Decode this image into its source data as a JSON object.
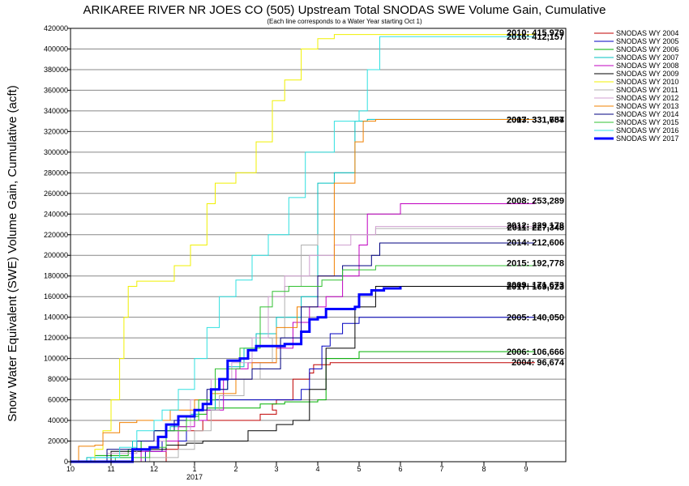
{
  "chart_data": {
    "type": "line",
    "title": "ARIKAREE RIVER NR JOES CO (505) Upstream Total SNODAS SWE Volume Gain, Cumulative",
    "subtitle": "(Each line corresponds to a Water Year starting Oct 1)",
    "ylabel": "Snow Water Equivalent (SWE) Volume Gain, Cumulative (acft)",
    "xlabel": "",
    "x_year_label": "2017",
    "x_tick_labels": [
      "10",
      "11",
      "12",
      "1",
      "2",
      "3",
      "4",
      "5",
      "6",
      "7",
      "8",
      "9"
    ],
    "ylim": [
      0,
      420000
    ],
    "y_ticks": [
      0,
      20000,
      40000,
      60000,
      80000,
      100000,
      120000,
      140000,
      160000,
      180000,
      200000,
      220000,
      240000,
      260000,
      280000,
      300000,
      320000,
      340000,
      360000,
      380000,
      400000,
      420000
    ],
    "grid": "horizontal",
    "legend_position": "right",
    "series": [
      {
        "name": "SNODAS WY 2004",
        "color": "#c00000",
        "end_label": "2004: 96,674",
        "points": [
          [
            0,
            0
          ],
          [
            2.3,
            0
          ],
          [
            2.3,
            12000
          ],
          [
            2.6,
            12000
          ],
          [
            2.6,
            30000
          ],
          [
            3.2,
            30000
          ],
          [
            3.2,
            40000
          ],
          [
            4.6,
            46000
          ],
          [
            5.0,
            50000
          ],
          [
            4.9,
            56000
          ],
          [
            5.0,
            60000
          ],
          [
            5.4,
            80000
          ],
          [
            5.8,
            86000
          ],
          [
            5.9,
            94000
          ],
          [
            6.3,
            96000
          ],
          [
            11.2,
            96674
          ]
        ]
      },
      {
        "name": "SNODAS WY 2005",
        "color": "#0000c0",
        "end_label": "2005: 140,050",
        "points": [
          [
            0,
            0
          ],
          [
            1.8,
            0
          ],
          [
            1.8,
            10000
          ],
          [
            2.2,
            20000
          ],
          [
            2.8,
            44000
          ],
          [
            3.0,
            60000
          ],
          [
            5.6,
            70000
          ],
          [
            5.8,
            90000
          ],
          [
            6.1,
            112000
          ],
          [
            6.3,
            124000
          ],
          [
            6.6,
            134000
          ],
          [
            7.0,
            140000
          ],
          [
            11.2,
            140050
          ]
        ]
      },
      {
        "name": "SNODAS WY 2006",
        "color": "#00b000",
        "end_label": "2006: 106,666",
        "points": [
          [
            0,
            0
          ],
          [
            0.6,
            0
          ],
          [
            0.6,
            6000
          ],
          [
            1.4,
            12000
          ],
          [
            1.7,
            20000
          ],
          [
            2.0,
            30000
          ],
          [
            2.6,
            34000
          ],
          [
            2.8,
            44000
          ],
          [
            3.1,
            46000
          ],
          [
            3.3,
            52000
          ],
          [
            4.1,
            52000
          ],
          [
            4.6,
            56000
          ],
          [
            5.2,
            58000
          ],
          [
            6.0,
            60000
          ],
          [
            6.2,
            100000
          ],
          [
            7.0,
            106666
          ],
          [
            11.2,
            106666
          ]
        ]
      },
      {
        "name": "SNODAS WY 2007",
        "color": "#00c0c0",
        "end_label": "2007: 331,754",
        "points": [
          [
            0,
            0
          ],
          [
            0.4,
            0
          ],
          [
            0.4,
            4000
          ],
          [
            1.5,
            20000
          ],
          [
            2.0,
            30000
          ],
          [
            2.4,
            34000
          ],
          [
            2.6,
            40000
          ],
          [
            2.9,
            46000
          ],
          [
            3.1,
            50000
          ],
          [
            3.5,
            70000
          ],
          [
            3.8,
            92000
          ],
          [
            4.2,
            110000
          ],
          [
            4.5,
            124000
          ],
          [
            5.0,
            140000
          ],
          [
            5.6,
            160000
          ],
          [
            6.0,
            270000
          ],
          [
            6.4,
            280000
          ],
          [
            6.9,
            330000
          ],
          [
            7.2,
            331754
          ],
          [
            11.2,
            331754
          ]
        ]
      },
      {
        "name": "SNODAS WY 2008",
        "color": "#c000c0",
        "end_label": "2008: 253,289",
        "points": [
          [
            0,
            0
          ],
          [
            1.7,
            0
          ],
          [
            1.7,
            10000
          ],
          [
            2.3,
            20000
          ],
          [
            2.6,
            34000
          ],
          [
            3.0,
            40000
          ],
          [
            3.3,
            50000
          ],
          [
            3.7,
            80000
          ],
          [
            4.0,
            90000
          ],
          [
            4.3,
            96000
          ],
          [
            5.0,
            110000
          ],
          [
            5.4,
            135000
          ],
          [
            5.8,
            150000
          ],
          [
            6.2,
            160000
          ],
          [
            6.6,
            180000
          ],
          [
            7.0,
            210000
          ],
          [
            7.2,
            240000
          ],
          [
            8.0,
            250000
          ],
          [
            11.2,
            253289
          ]
        ]
      },
      {
        "name": "SNODAS WY 2009",
        "color": "#000000",
        "end_label": "2009: 171,673",
        "points": [
          [
            0,
            0
          ],
          [
            1.0,
            0
          ],
          [
            1.0,
            10000
          ],
          [
            1.7,
            12000
          ],
          [
            2.3,
            16000
          ],
          [
            2.8,
            18000
          ],
          [
            3.2,
            20000
          ],
          [
            4.3,
            30000
          ],
          [
            5.0,
            36000
          ],
          [
            5.4,
            40000
          ],
          [
            5.8,
            70000
          ],
          [
            6.2,
            110000
          ],
          [
            6.9,
            150000
          ],
          [
            7.4,
            170000
          ],
          [
            11.2,
            171673
          ]
        ]
      },
      {
        "name": "SNODAS WY 2010",
        "color": "#f0f000",
        "end_label": "2010: 415,979",
        "points": [
          [
            0,
            0
          ],
          [
            0.6,
            0
          ],
          [
            0.6,
            12000
          ],
          [
            0.8,
            30000
          ],
          [
            1.0,
            60000
          ],
          [
            1.2,
            100000
          ],
          [
            1.3,
            140000
          ],
          [
            1.4,
            170000
          ],
          [
            1.6,
            175000
          ],
          [
            2.5,
            190000
          ],
          [
            2.9,
            210000
          ],
          [
            3.3,
            250000
          ],
          [
            3.5,
            270000
          ],
          [
            4.0,
            280000
          ],
          [
            4.5,
            310000
          ],
          [
            4.9,
            350000
          ],
          [
            5.2,
            370000
          ],
          [
            5.6,
            400000
          ],
          [
            6.0,
            410000
          ],
          [
            6.4,
            414000
          ],
          [
            11.2,
            415979
          ]
        ]
      },
      {
        "name": "SNODAS WY 2011",
        "color": "#b0b0b0",
        "end_label": "2011: 227,348",
        "points": [
          [
            0,
            0
          ],
          [
            1.9,
            0
          ],
          [
            1.9,
            4000
          ],
          [
            2.6,
            12000
          ],
          [
            3.0,
            30000
          ],
          [
            3.4,
            50000
          ],
          [
            3.6,
            64000
          ],
          [
            4.2,
            80000
          ],
          [
            4.6,
            96000
          ],
          [
            4.9,
            120000
          ],
          [
            5.2,
            170000
          ],
          [
            5.6,
            210000
          ],
          [
            6.0,
            220000
          ],
          [
            7.4,
            226000
          ],
          [
            11.2,
            227348
          ]
        ]
      },
      {
        "name": "SNODAS WY 2012",
        "color": "#d0a0d0",
        "end_label": "2012: 229,178",
        "points": [
          [
            0,
            0
          ],
          [
            0.9,
            0
          ],
          [
            0.9,
            8000
          ],
          [
            1.6,
            20000
          ],
          [
            2.3,
            30000
          ],
          [
            2.9,
            60000
          ],
          [
            3.4,
            80000
          ],
          [
            3.9,
            96000
          ],
          [
            4.4,
            120000
          ],
          [
            4.8,
            160000
          ],
          [
            5.2,
            180000
          ],
          [
            5.8,
            200000
          ],
          [
            6.4,
            210000
          ],
          [
            6.8,
            220000
          ],
          [
            7.4,
            228000
          ],
          [
            11.2,
            229178
          ]
        ]
      },
      {
        "name": "SNODAS WY 2013",
        "color": "#f08000",
        "end_label": "2013: 331,687",
        "points": [
          [
            0,
            0
          ],
          [
            0.2,
            0
          ],
          [
            0.2,
            15000
          ],
          [
            0.6,
            16000
          ],
          [
            0.8,
            28000
          ],
          [
            1.2,
            38000
          ],
          [
            1.6,
            40000
          ],
          [
            2.4,
            50000
          ],
          [
            3.0,
            60000
          ],
          [
            3.4,
            66000
          ],
          [
            4.0,
            80000
          ],
          [
            4.4,
            96000
          ],
          [
            5.0,
            130000
          ],
          [
            5.5,
            150000
          ],
          [
            6.0,
            180000
          ],
          [
            6.4,
            270000
          ],
          [
            6.9,
            310000
          ],
          [
            7.1,
            330000
          ],
          [
            7.4,
            331687
          ],
          [
            11.2,
            331687
          ]
        ]
      },
      {
        "name": "SNODAS WY 2014",
        "color": "#000080",
        "end_label": "2014: 212,606",
        "points": [
          [
            0,
            0
          ],
          [
            0.9,
            0
          ],
          [
            0.9,
            12000
          ],
          [
            1.6,
            20000
          ],
          [
            2.0,
            30000
          ],
          [
            2.5,
            40000
          ],
          [
            3.0,
            50000
          ],
          [
            3.3,
            70000
          ],
          [
            3.8,
            80000
          ],
          [
            4.4,
            90000
          ],
          [
            5.1,
            120000
          ],
          [
            5.6,
            150000
          ],
          [
            6.0,
            180000
          ],
          [
            6.6,
            190000
          ],
          [
            7.3,
            200000
          ],
          [
            7.5,
            212000
          ],
          [
            11.2,
            212606
          ]
        ]
      },
      {
        "name": "SNODAS WY 2015",
        "color": "#30c030",
        "end_label": "2015: 192,778",
        "points": [
          [
            0,
            0
          ],
          [
            1.1,
            0
          ],
          [
            1.1,
            4000
          ],
          [
            1.9,
            14000
          ],
          [
            2.3,
            30000
          ],
          [
            2.8,
            40000
          ],
          [
            3.1,
            60000
          ],
          [
            3.5,
            90000
          ],
          [
            4.1,
            110000
          ],
          [
            4.6,
            150000
          ],
          [
            4.9,
            165000
          ],
          [
            5.3,
            170000
          ],
          [
            6.1,
            176000
          ],
          [
            6.6,
            186000
          ],
          [
            7.4,
            190000
          ],
          [
            11.2,
            192778
          ]
        ]
      },
      {
        "name": "SNODAS WY 2016",
        "color": "#30e0e0",
        "end_label": "2016: 412,157",
        "points": [
          [
            0,
            0
          ],
          [
            0.5,
            0
          ],
          [
            0.5,
            4000
          ],
          [
            1.2,
            14000
          ],
          [
            1.6,
            30000
          ],
          [
            2.0,
            40000
          ],
          [
            2.2,
            50000
          ],
          [
            2.6,
            70000
          ],
          [
            3.0,
            100000
          ],
          [
            3.3,
            130000
          ],
          [
            3.6,
            160000
          ],
          [
            4.0,
            176000
          ],
          [
            4.4,
            200000
          ],
          [
            4.8,
            220000
          ],
          [
            5.3,
            256000
          ],
          [
            5.7,
            300000
          ],
          [
            6.4,
            330000
          ],
          [
            7.0,
            340000
          ],
          [
            7.2,
            380000
          ],
          [
            7.5,
            412000
          ],
          [
            11.2,
            412157
          ]
        ]
      },
      {
        "name": "SNODAS WY 2017",
        "color": "#0000ff",
        "end_label": "2017: 169,923",
        "thick": true,
        "points": [
          [
            0,
            0
          ],
          [
            1.5,
            0
          ],
          [
            1.5,
            12000
          ],
          [
            1.9,
            14000
          ],
          [
            2.1,
            24000
          ],
          [
            2.3,
            36000
          ],
          [
            2.6,
            44000
          ],
          [
            3.0,
            50000
          ],
          [
            3.2,
            56000
          ],
          [
            3.4,
            70000
          ],
          [
            3.6,
            80000
          ],
          [
            3.8,
            98000
          ],
          [
            4.1,
            100000
          ],
          [
            4.3,
            108000
          ],
          [
            4.5,
            112000
          ],
          [
            5.2,
            114000
          ],
          [
            5.6,
            126000
          ],
          [
            5.8,
            138000
          ],
          [
            6.0,
            140000
          ],
          [
            6.2,
            148000
          ],
          [
            6.9,
            150000
          ],
          [
            7.0,
            162000
          ],
          [
            7.3,
            166000
          ],
          [
            7.6,
            168000
          ],
          [
            8.0,
            169923
          ]
        ]
      }
    ]
  }
}
